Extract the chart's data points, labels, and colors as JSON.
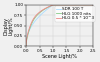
{
  "title": "",
  "xlabel": "Scene Light/%",
  "ylabel": "Display\nLight/%",
  "xlim": [
    0,
    2.5
  ],
  "ylim": [
    0,
    1.0
  ],
  "xticks": [
    0,
    0.5,
    1.0,
    1.5,
    2.0,
    2.5
  ],
  "yticks": [
    0.0,
    0.25,
    0.5,
    0.75,
    1.0
  ],
  "grid_color": "#cccccc",
  "bg_color": "#f0f0f0",
  "curves": [
    {
      "label": "SDR 100 T",
      "color": "#aaddff",
      "lw": 0.6
    },
    {
      "label": "HLG 1000 nits",
      "color": "#88cc88",
      "lw": 0.6
    },
    {
      "label": "HLG 0.5 * 10^3",
      "color": "#ee8888",
      "lw": 0.6
    }
  ],
  "legend_fontsize": 3.0,
  "axis_label_fontsize": 3.5,
  "tick_fontsize": 3.0
}
